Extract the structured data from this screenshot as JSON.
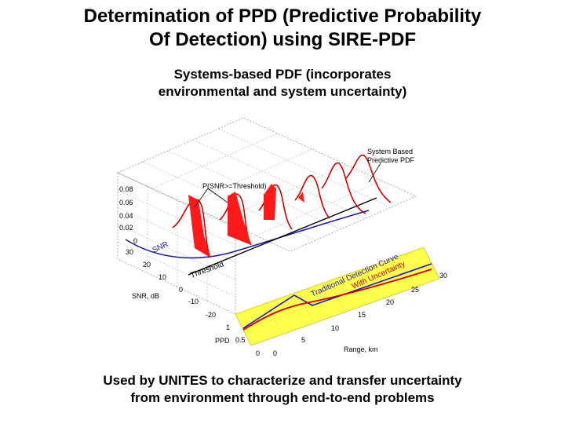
{
  "slide": {
    "title_line1": "Determination of PPD (Predictive Probability",
    "title_line2": "Of Detection) using SIRE-PDF",
    "subtitle_line1": "Systems-based PDF (incorporates",
    "subtitle_line2": "environmental and system uncertainty)",
    "footer_line1": "Used by UNITES to characterize and transfer uncertainty",
    "footer_line2": "from environment through end-to-end problems"
  },
  "figure": {
    "annotations": {
      "system_pdf_line1": "System Based",
      "system_pdf_line2": "Predictive PDF",
      "ppd_threshold": "P(SNR>=Threshold)",
      "snr_curve": "SNR",
      "threshold": "Threshold",
      "traditional_curve": "Traditional Detection Curve",
      "with_uncertainty": "With Uncertainty"
    },
    "axes": {
      "pdf_ticks": [
        "0.08",
        "0.06",
        "0.04",
        "0.02",
        "0"
      ],
      "snr_ticks": [
        "30",
        "20",
        "10",
        "0",
        "-10",
        "-20"
      ],
      "snr_label": "SNR, dB",
      "ppd_ticks": [
        "1",
        "0.5",
        "0"
      ],
      "ppd_label": "PPD",
      "range_ticks": [
        "0",
        "5",
        "10",
        "15",
        "20",
        "25",
        "30"
      ],
      "range_label": "Range, km"
    },
    "colors": {
      "pdf_fill": "#ff1a1a",
      "pdf_line": "#d00000",
      "snr_curve": "#1a1aa8",
      "threshold": "#000000",
      "ppd_plane": "#ffff4d",
      "traditional_curve": "#1a1acc",
      "uncertainty_curve": "#cc0000",
      "annotation_text": "#cc0000"
    }
  }
}
